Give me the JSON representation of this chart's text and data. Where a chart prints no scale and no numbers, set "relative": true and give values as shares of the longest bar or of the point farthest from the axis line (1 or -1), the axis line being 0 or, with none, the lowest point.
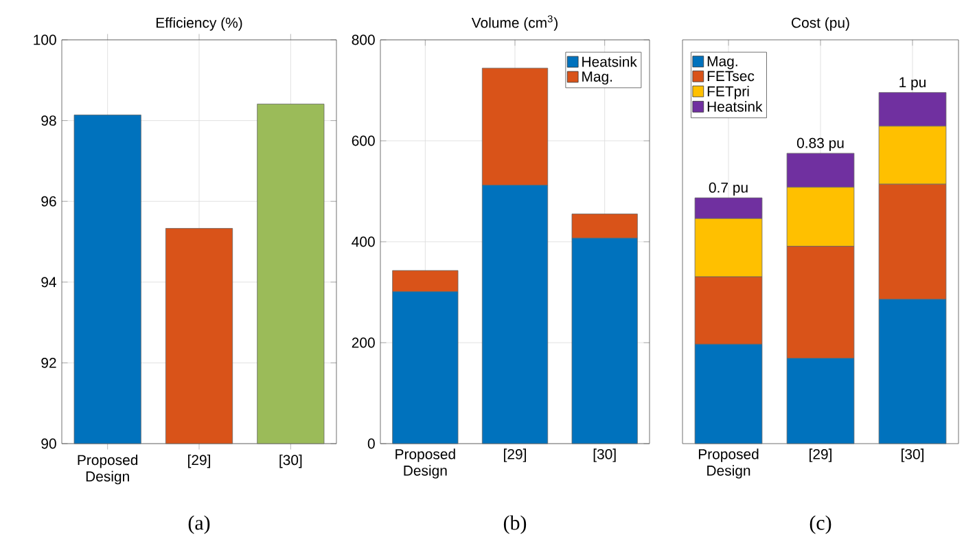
{
  "chart_data": [
    {
      "type": "bar",
      "title": "Efficiency (%)",
      "categories": [
        "Proposed Design",
        "[29]",
        "[30]"
      ],
      "values": [
        98.14,
        95.33,
        98.41
      ],
      "colors": [
        "#0072bd",
        "#d95319",
        "#9bbb59"
      ],
      "ylim": [
        90,
        100
      ],
      "yticks": [
        90,
        92,
        94,
        96,
        98,
        100
      ],
      "grid": true,
      "annotations": [
        "(a)"
      ]
    },
    {
      "type": "bar",
      "title": "Volume (cm$^{3}$)",
      "categories": [
        "Proposed Design",
        "[29]",
        "[30]"
      ],
      "stacked": true,
      "series": [
        {
          "name": "Heatsink",
          "color": "#0072bd",
          "values": [
            301,
            512,
            407
          ]
        },
        {
          "name": "Mag.",
          "color": "#d95319",
          "values": [
            42,
            232,
            48
          ]
        }
      ],
      "ylim": [
        0,
        800
      ],
      "yticks": [
        0,
        200,
        400,
        600,
        800
      ],
      "grid": true,
      "legend": "top right",
      "annotations": [
        "(b)"
      ]
    },
    {
      "type": "bar",
      "title": "Cost (pu)",
      "categories": [
        "Proposed Design",
        "[29]",
        "[30]"
      ],
      "stacked": true,
      "series": [
        {
          "name": "Mag.",
          "color": "#0072bd",
          "values": [
            0.283,
            0.243,
            0.411
          ]
        },
        {
          "name": "FETsec",
          "color": "#d95319",
          "values": [
            0.192,
            0.319,
            0.328
          ]
        },
        {
          "name": "FETpri",
          "color": "#ffc000",
          "values": [
            0.166,
            0.168,
            0.165
          ]
        },
        {
          "name": "Heatsink",
          "color": "#7030a0",
          "values": [
            0.059,
            0.097,
            0.096
          ]
        }
      ],
      "relative": true,
      "totals": [
        "0.7 pu",
        "0.83 pu",
        "1 pu"
      ],
      "grid": true,
      "legend": "top left",
      "annotations": [
        "(c)"
      ]
    }
  ]
}
